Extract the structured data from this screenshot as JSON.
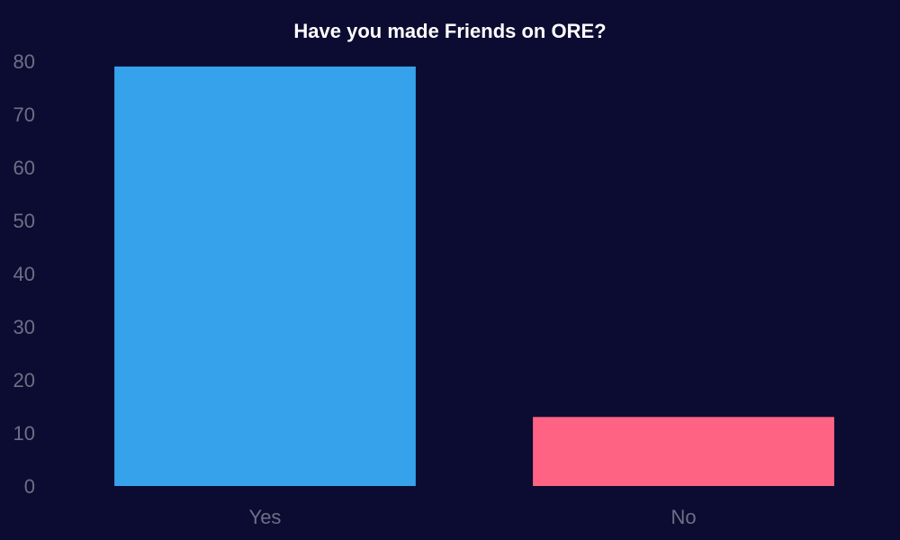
{
  "chart_data": {
    "type": "bar",
    "title": "Have you made Friends on ORE?",
    "categories": [
      "Yes",
      "No"
    ],
    "values": [
      79,
      13
    ],
    "colors": [
      "#36a2eb",
      "#ff6384"
    ],
    "ylim": [
      0,
      80
    ],
    "yticks": [
      0,
      10,
      20,
      30,
      40,
      50,
      60,
      70,
      80
    ],
    "grid": false,
    "legend": "none",
    "xlabel": "",
    "ylabel": ""
  },
  "theme": {
    "background": "#0c0c32",
    "title_color": "#ffffff",
    "tick_color": "#6e6e86"
  }
}
